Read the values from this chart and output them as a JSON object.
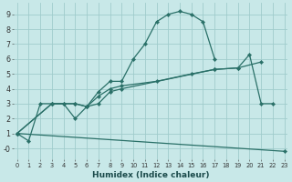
{
  "background_color": "#c8e8e8",
  "grid_color": "#a0cccc",
  "line_color": "#2a7068",
  "xlabel": "Humidex (Indice chaleur)",
  "curve1_x": [
    0,
    1,
    2,
    3,
    4,
    5,
    6,
    7,
    8,
    9,
    10,
    11,
    12,
    13,
    14,
    15,
    16,
    17
  ],
  "curve1_y": [
    1.0,
    0.5,
    3.0,
    3.0,
    3.0,
    2.0,
    2.8,
    3.8,
    4.5,
    4.5,
    6.0,
    7.0,
    8.5,
    9.0,
    9.2,
    9.0,
    8.5,
    6.0
  ],
  "curve2_x": [
    0,
    3,
    4,
    5,
    6,
    7,
    8,
    9,
    17,
    19,
    20,
    21,
    22
  ],
  "curve2_y": [
    1.0,
    3.0,
    3.0,
    3.0,
    2.8,
    3.0,
    3.8,
    4.0,
    5.3,
    5.4,
    6.3,
    3.0,
    3.0
  ],
  "curve3_x": [
    0,
    3,
    5,
    6,
    7,
    8,
    9,
    12,
    15,
    17,
    19,
    21
  ],
  "curve3_y": [
    1.0,
    3.0,
    3.0,
    2.8,
    3.5,
    4.0,
    4.2,
    4.5,
    5.0,
    5.3,
    5.4,
    5.8
  ],
  "curve4_x": [
    0,
    23
  ],
  "curve4_y": [
    1.0,
    -0.2
  ],
  "xlim": [
    -0.5,
    23.5
  ],
  "ylim": [
    -0.8,
    9.8
  ]
}
